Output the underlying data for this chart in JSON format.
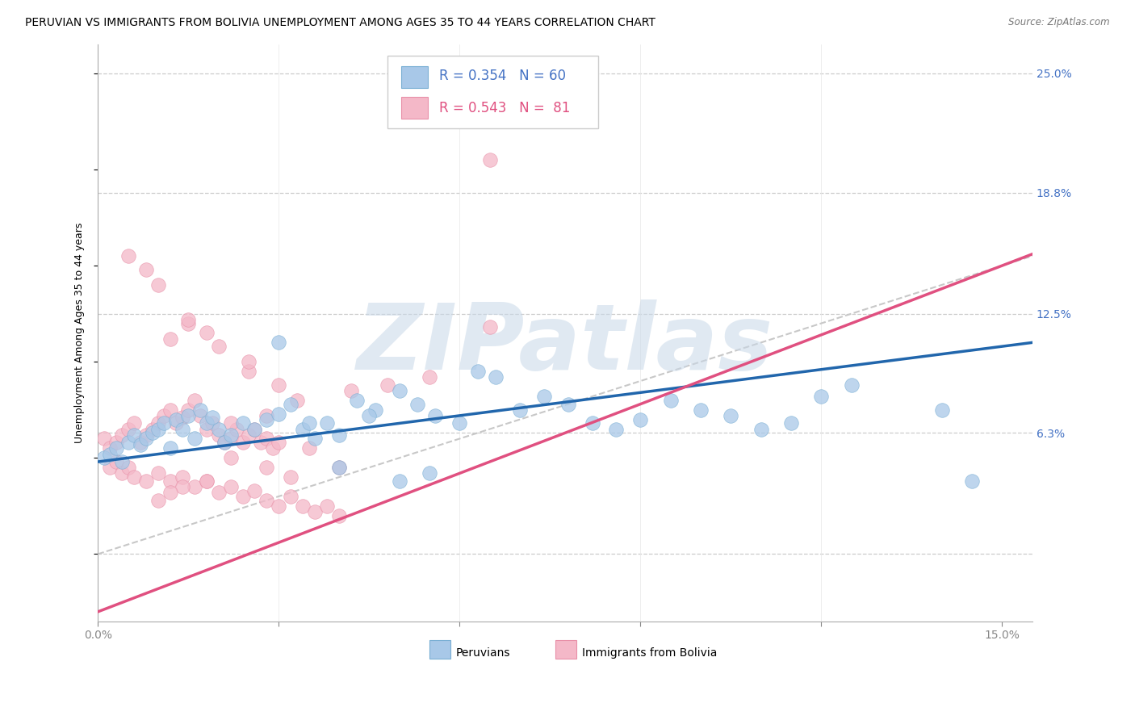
{
  "title": "PERUVIAN VS IMMIGRANTS FROM BOLIVIA UNEMPLOYMENT AMONG AGES 35 TO 44 YEARS CORRELATION CHART",
  "source": "Source: ZipAtlas.com",
  "ylabel": "Unemployment Among Ages 35 to 44 years",
  "xlim": [
    0.0,
    0.155
  ],
  "ylim": [
    -0.035,
    0.265
  ],
  "xticks": [
    0.0,
    0.03,
    0.06,
    0.09,
    0.12,
    0.15
  ],
  "xtick_labels": [
    "0.0%",
    "",
    "",
    "",
    "",
    "15.0%"
  ],
  "ytick_positions": [
    0.0,
    0.063,
    0.125,
    0.188,
    0.25
  ],
  "ytick_labels": [
    "",
    "6.3%",
    "12.5%",
    "18.8%",
    "25.0%"
  ],
  "blue_fill": "#A8C8E8",
  "blue_edge": "#7AAFD4",
  "pink_fill": "#F4B8C8",
  "pink_edge": "#E890A8",
  "blue_line_color": "#2166AC",
  "pink_line_color": "#E05080",
  "ref_line_color": "#C8C8C8",
  "watermark": "ZIPatlas",
  "watermark_color": "#C8D8E8",
  "blue_slope": 0.4,
  "blue_intercept": 0.048,
  "pink_slope": 1.2,
  "pink_intercept": -0.03,
  "title_fontsize": 10,
  "axis_label_fontsize": 9,
  "tick_fontsize": 10,
  "dot_size": 160,
  "blue_x": [
    0.001,
    0.002,
    0.003,
    0.004,
    0.005,
    0.006,
    0.007,
    0.008,
    0.009,
    0.01,
    0.011,
    0.012,
    0.013,
    0.014,
    0.015,
    0.016,
    0.017,
    0.018,
    0.019,
    0.02,
    0.021,
    0.022,
    0.024,
    0.026,
    0.028,
    0.03,
    0.032,
    0.034,
    0.036,
    0.038,
    0.04,
    0.043,
    0.046,
    0.05,
    0.053,
    0.056,
    0.06,
    0.063,
    0.066,
    0.07,
    0.074,
    0.078,
    0.082,
    0.086,
    0.09,
    0.095,
    0.1,
    0.105,
    0.11,
    0.115,
    0.12,
    0.125,
    0.03,
    0.035,
    0.04,
    0.045,
    0.05,
    0.055,
    0.14,
    0.145
  ],
  "blue_y": [
    0.05,
    0.052,
    0.055,
    0.048,
    0.058,
    0.062,
    0.057,
    0.06,
    0.063,
    0.065,
    0.068,
    0.055,
    0.07,
    0.065,
    0.072,
    0.06,
    0.075,
    0.068,
    0.071,
    0.065,
    0.058,
    0.062,
    0.068,
    0.065,
    0.07,
    0.073,
    0.078,
    0.065,
    0.06,
    0.068,
    0.062,
    0.08,
    0.075,
    0.085,
    0.078,
    0.072,
    0.068,
    0.095,
    0.092,
    0.075,
    0.082,
    0.078,
    0.068,
    0.065,
    0.07,
    0.08,
    0.075,
    0.072,
    0.065,
    0.068,
    0.082,
    0.088,
    0.11,
    0.068,
    0.045,
    0.072,
    0.038,
    0.042,
    0.075,
    0.038
  ],
  "pink_x": [
    0.001,
    0.002,
    0.003,
    0.004,
    0.005,
    0.006,
    0.007,
    0.008,
    0.009,
    0.01,
    0.011,
    0.012,
    0.013,
    0.014,
    0.015,
    0.016,
    0.017,
    0.018,
    0.019,
    0.02,
    0.021,
    0.022,
    0.023,
    0.024,
    0.025,
    0.026,
    0.027,
    0.028,
    0.029,
    0.03,
    0.002,
    0.003,
    0.004,
    0.005,
    0.006,
    0.008,
    0.01,
    0.012,
    0.014,
    0.016,
    0.018,
    0.02,
    0.022,
    0.024,
    0.026,
    0.028,
    0.03,
    0.032,
    0.034,
    0.036,
    0.038,
    0.04,
    0.03,
    0.025,
    0.015,
    0.01,
    0.008,
    0.005,
    0.035,
    0.04,
    0.025,
    0.02,
    0.018,
    0.015,
    0.012,
    0.032,
    0.028,
    0.022,
    0.018,
    0.014,
    0.012,
    0.01,
    0.065,
    0.022,
    0.028,
    0.033,
    0.042,
    0.048,
    0.055,
    0.065
  ],
  "pink_y": [
    0.06,
    0.055,
    0.058,
    0.062,
    0.065,
    0.068,
    0.058,
    0.062,
    0.065,
    0.068,
    0.072,
    0.075,
    0.068,
    0.071,
    0.075,
    0.08,
    0.072,
    0.065,
    0.068,
    0.062,
    0.058,
    0.06,
    0.065,
    0.058,
    0.062,
    0.065,
    0.058,
    0.06,
    0.055,
    0.058,
    0.045,
    0.048,
    0.042,
    0.045,
    0.04,
    0.038,
    0.042,
    0.038,
    0.04,
    0.035,
    0.038,
    0.032,
    0.035,
    0.03,
    0.033,
    0.028,
    0.025,
    0.03,
    0.025,
    0.022,
    0.025,
    0.02,
    0.088,
    0.095,
    0.12,
    0.14,
    0.148,
    0.155,
    0.055,
    0.045,
    0.1,
    0.108,
    0.115,
    0.122,
    0.112,
    0.04,
    0.045,
    0.05,
    0.038,
    0.035,
    0.032,
    0.028,
    0.205,
    0.068,
    0.072,
    0.08,
    0.085,
    0.088,
    0.092,
    0.118
  ]
}
